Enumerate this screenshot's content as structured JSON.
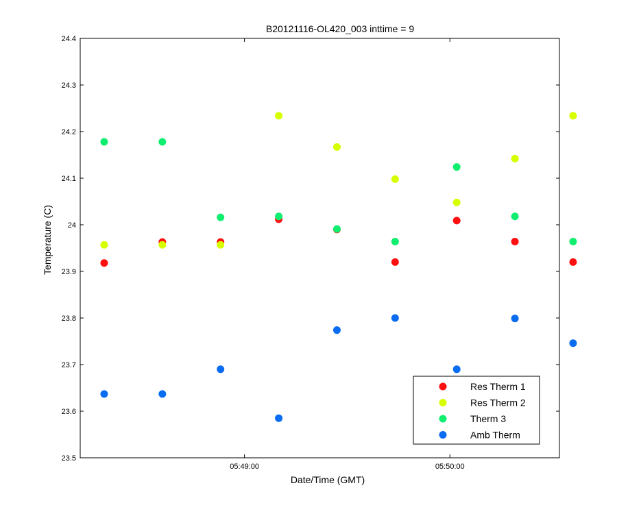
{
  "chart_data": {
    "type": "scatter",
    "title": "B20121116-OL420_003 inttime = 9",
    "xlabel": "Date/Time (GMT)",
    "ylabel": "Temperature (C)",
    "ylim": [
      23.5,
      24.4
    ],
    "y_ticks": [
      23.5,
      23.6,
      23.7,
      23.8,
      23.9,
      24,
      24.1,
      24.2,
      24.3,
      24.4
    ],
    "y_tick_labels": [
      "23.5",
      "23.6",
      "23.7",
      "23.8",
      "23.9",
      "24",
      "24.1",
      "24.2",
      "24.3",
      "24.4"
    ],
    "xlim": [
      "05:48:12",
      "05:50:32"
    ],
    "x_ticks": [
      "05:49:00",
      "05:50:00"
    ],
    "x_tick_labels": [
      "05:49:00",
      "05:50:00"
    ],
    "x": [
      "05:48:19",
      "05:48:36",
      "05:48:53",
      "05:49:10",
      "05:49:27",
      "05:49:44",
      "05:50:02",
      "05:50:19",
      "05:50:36"
    ],
    "series": [
      {
        "name": "Res Therm 1",
        "color": "#ff1010",
        "values": [
          23.918,
          23.963,
          23.963,
          24.012,
          23.99,
          23.92,
          24.009,
          23.964,
          23.92
        ]
      },
      {
        "name": "Res Therm 2",
        "color": "#d8ff00",
        "values": [
          23.957,
          23.957,
          23.957,
          24.234,
          24.167,
          24.098,
          24.048,
          24.142,
          24.234
        ]
      },
      {
        "name": "Therm 3",
        "color": "#10ee70",
        "values": [
          24.178,
          24.178,
          24.016,
          24.018,
          23.991,
          23.964,
          24.124,
          24.018,
          23.964
        ]
      },
      {
        "name": "Amb Therm",
        "color": "#0a6cf0",
        "values": [
          23.637,
          23.637,
          23.69,
          23.585,
          23.774,
          23.8,
          23.69,
          23.799,
          23.746
        ]
      }
    ],
    "legend_position": "bottom-right",
    "grid": false
  }
}
